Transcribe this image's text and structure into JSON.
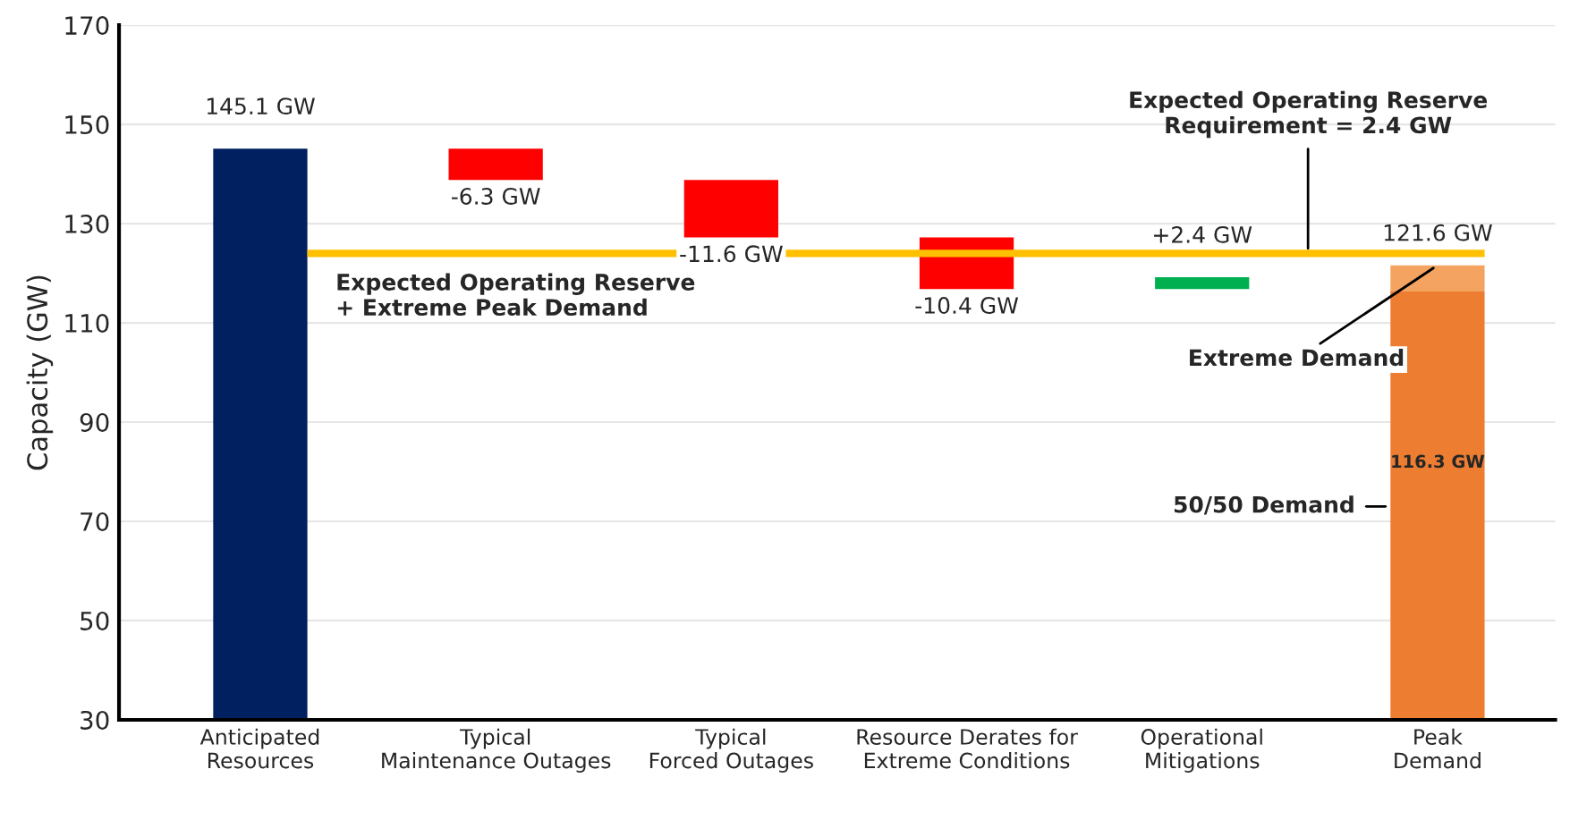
{
  "chart_data": {
    "type": "bar",
    "ylabel": "Capacity (GW)",
    "categories": [
      "Anticipated Resources",
      "Typical Maintenance Outages",
      "Typical Forced Outages",
      "Resource Derates for Extreme Conditions",
      "Operational Mitigations",
      "Peak Demand"
    ],
    "series": [
      {
        "values": [
          145.1,
          -6.3,
          -11.6,
          -10.4,
          2.4,
          116.3
        ],
        "base": [
          null,
          145.1,
          138.8,
          127.2,
          116.8,
          null
        ],
        "colors": [
          "#002060",
          "#ff0000",
          "#ff0000",
          "#ff0000",
          "#00b050",
          "#ed7d31"
        ],
        "value_labels": [
          "145.1 GW",
          "-6.3 GW",
          "-11.6 GW",
          "-10.4 GW",
          "+2.4 GW",
          "116.3 GW"
        ]
      },
      {
        "values": [
          null,
          null,
          null,
          null,
          null,
          5.3
        ],
        "base": [
          null,
          null,
          null,
          null,
          null,
          116.3
        ],
        "color": "#f4a460"
      }
    ],
    "totals": [
      null,
      null,
      null,
      null,
      null,
      "121.6 GW"
    ],
    "ylim": [
      30,
      170
    ],
    "yticks": [
      30,
      50,
      70,
      90,
      110,
      130,
      150,
      170
    ],
    "grid": "y",
    "legend": false,
    "ref_lines": [
      {
        "axis": "y",
        "value": 124,
        "label": "Expected Operating Reserve\n+ Extreme Peak Demand",
        "color": "#ffc000"
      }
    ],
    "annotations": [
      {
        "text": "Expected Operating Reserve\nRequirement = 2.4 GW",
        "y": 124
      },
      {
        "text": "Extreme Demand",
        "x": "Peak Demand",
        "y": 121.6
      },
      "50/50 Demand"
    ]
  }
}
